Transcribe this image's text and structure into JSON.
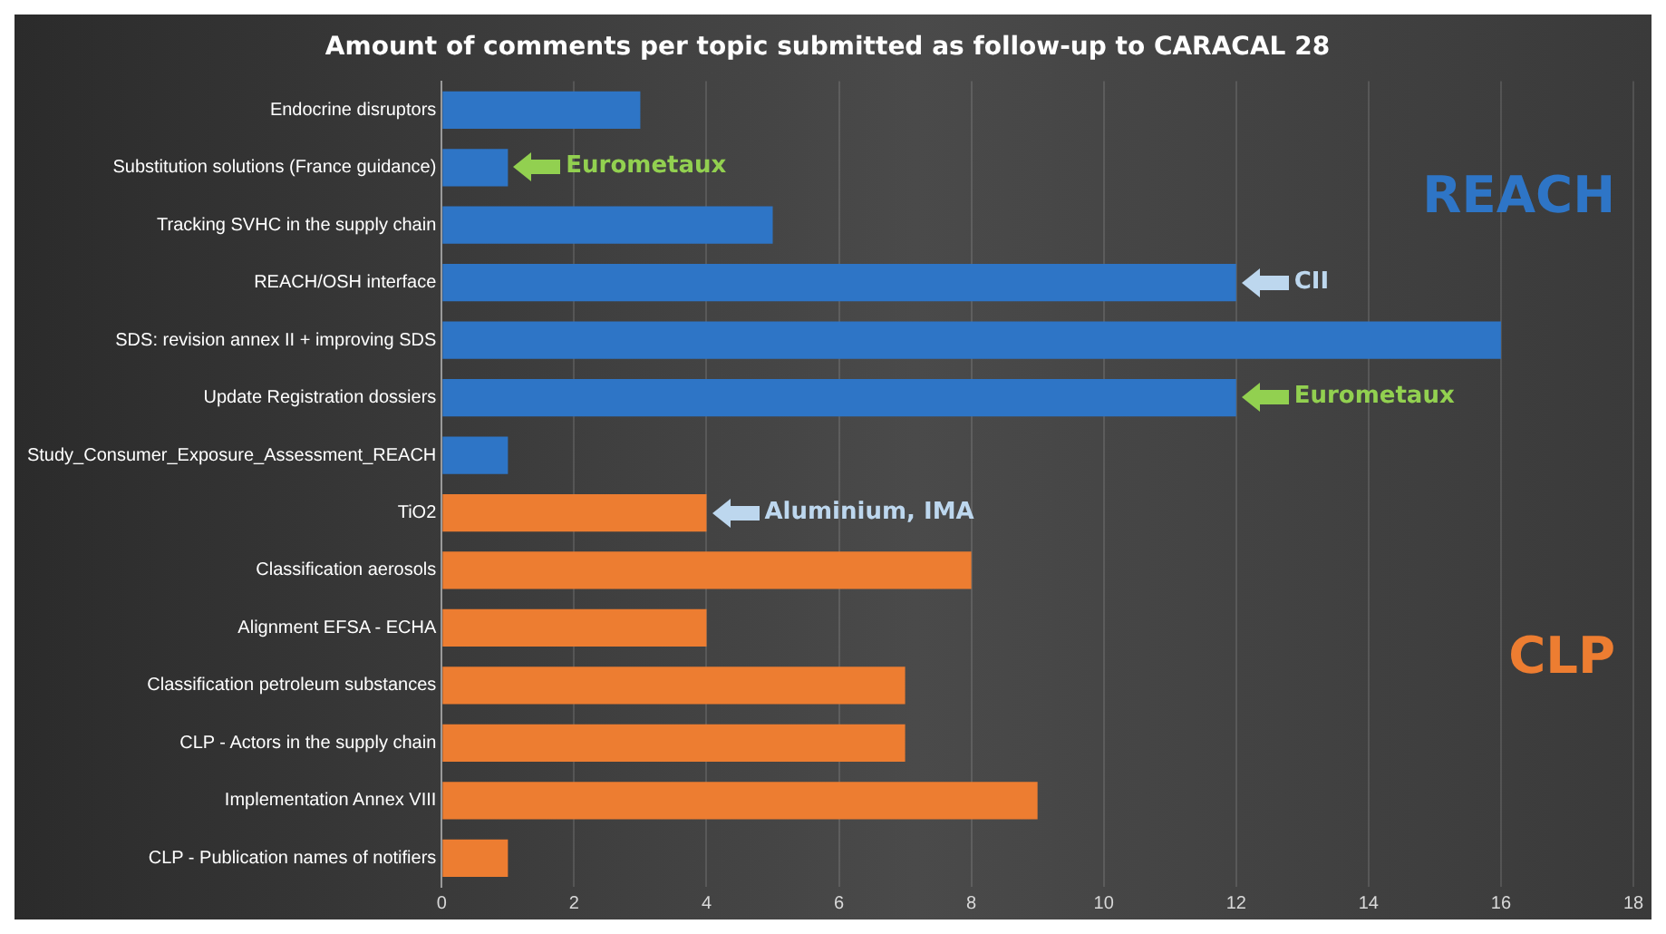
{
  "chart_data": {
    "type": "bar",
    "orientation": "horizontal",
    "title": "Amount of comments per topic submitted as follow-up to CARACAL 28",
    "categories": [
      "Endocrine disruptors",
      "Substitution solutions (France guidance)",
      "Tracking SVHC in the supply chain",
      "REACH/OSH interface",
      "SDS: revision annex II + improving SDS",
      "Update Registration dossiers",
      "Study_Consumer_Exposure_Assessment_REACH",
      "TiO2",
      "Classification aerosols",
      "Alignment EFSA - ECHA",
      "Classification petroleum substances",
      "CLP - Actors in the supply chain",
      "Implementation Annex VIII",
      "CLP - Publication names of notifiers"
    ],
    "values": [
      3,
      1,
      5,
      12,
      16,
      12,
      1,
      4,
      8,
      4,
      7,
      7,
      9,
      1
    ],
    "colors": [
      "#2e75c6",
      "#2e75c6",
      "#2e75c6",
      "#2e75c6",
      "#2e75c6",
      "#2e75c6",
      "#2e75c6",
      "#ed7d31",
      "#ed7d31",
      "#ed7d31",
      "#ed7d31",
      "#ed7d31",
      "#ed7d31",
      "#ed7d31"
    ],
    "xlim": [
      0,
      18
    ],
    "xticks": [
      0,
      2,
      4,
      6,
      8,
      10,
      12,
      14,
      16,
      18
    ],
    "grid": "x",
    "legend": false,
    "annotations": [
      {
        "text": "Eurometaux",
        "x": 1,
        "y": "Substitution solutions (France guidance)"
      },
      {
        "text": "CII",
        "x": 12,
        "y": "REACH/OSH interface"
      },
      {
        "text": "Eurometaux",
        "x": 12,
        "y": "Update Registration dossiers"
      },
      {
        "text": "Aluminium, IMA",
        "x": 4,
        "y": "TiO2"
      },
      "REACH",
      "CLP"
    ]
  }
}
